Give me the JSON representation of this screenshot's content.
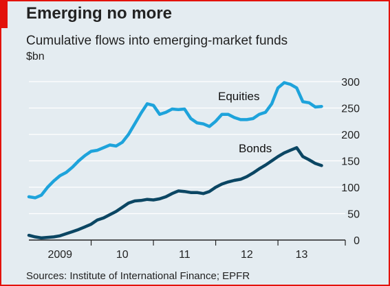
{
  "title": "Emerging no more",
  "subtitle": "Cumulative flows into emerging-market funds",
  "unit": "$bn",
  "source": "Sources: Institute of International Finance; EPFR",
  "colors": {
    "frame": "#e3120b",
    "background": "#e4ecf1",
    "equities": "#1ea3db",
    "bonds": "#0b4663",
    "grid": "#ffffff",
    "baseline": "#222222"
  },
  "chart_data": {
    "type": "line",
    "title": "Emerging no more",
    "subtitle": "Cumulative flows into emerging-market funds",
    "ylabel": "$bn",
    "xlabel": "",
    "ylim": [
      0,
      300
    ],
    "yticks": [
      0,
      50,
      100,
      150,
      200,
      250,
      300
    ],
    "y_axis_position": "right",
    "grid": true,
    "x_tick_labels": [
      "2009",
      "10",
      "11",
      "12",
      "13"
    ],
    "xlim": [
      2009.0,
      2013.75
    ],
    "series": [
      {
        "name": "Equities",
        "x": [
          2009.0,
          2009.1,
          2009.2,
          2009.3,
          2009.4,
          2009.5,
          2009.6,
          2009.7,
          2009.8,
          2009.9,
          2010.0,
          2010.1,
          2010.2,
          2010.3,
          2010.4,
          2010.5,
          2010.6,
          2010.7,
          2010.8,
          2010.9,
          2011.0,
          2011.1,
          2011.2,
          2011.3,
          2011.4,
          2011.5,
          2011.6,
          2011.7,
          2011.8,
          2011.9,
          2012.0,
          2012.1,
          2012.2,
          2012.3,
          2012.4,
          2012.5,
          2012.6,
          2012.7,
          2012.8,
          2012.9,
          2013.0,
          2013.1,
          2013.2,
          2013.3,
          2013.4,
          2013.5,
          2013.6,
          2013.7
        ],
        "values": [
          82,
          80,
          85,
          100,
          112,
          122,
          128,
          138,
          150,
          160,
          168,
          170,
          175,
          180,
          178,
          185,
          200,
          220,
          240,
          258,
          255,
          238,
          242,
          248,
          247,
          248,
          230,
          222,
          220,
          215,
          225,
          238,
          238,
          232,
          228,
          228,
          230,
          238,
          242,
          258,
          288,
          298,
          295,
          288,
          262,
          260,
          252,
          253
        ]
      },
      {
        "name": "Bonds",
        "x": [
          2009.0,
          2009.1,
          2009.2,
          2009.3,
          2009.4,
          2009.5,
          2009.6,
          2009.7,
          2009.8,
          2009.9,
          2010.0,
          2010.1,
          2010.2,
          2010.3,
          2010.4,
          2010.5,
          2010.6,
          2010.7,
          2010.8,
          2010.9,
          2011.0,
          2011.1,
          2011.2,
          2011.3,
          2011.4,
          2011.5,
          2011.6,
          2011.7,
          2011.8,
          2011.9,
          2012.0,
          2012.1,
          2012.2,
          2012.3,
          2012.4,
          2012.5,
          2012.6,
          2012.7,
          2012.8,
          2012.9,
          2013.0,
          2013.1,
          2013.2,
          2013.3,
          2013.4,
          2013.5,
          2013.6,
          2013.7
        ],
        "values": [
          9,
          6,
          4,
          5,
          6,
          8,
          12,
          16,
          20,
          25,
          30,
          38,
          42,
          48,
          54,
          62,
          70,
          74,
          75,
          77,
          76,
          78,
          82,
          88,
          93,
          92,
          90,
          90,
          88,
          92,
          100,
          106,
          110,
          113,
          115,
          120,
          127,
          135,
          142,
          150,
          158,
          165,
          170,
          175,
          158,
          152,
          145,
          141
        ]
      }
    ]
  }
}
